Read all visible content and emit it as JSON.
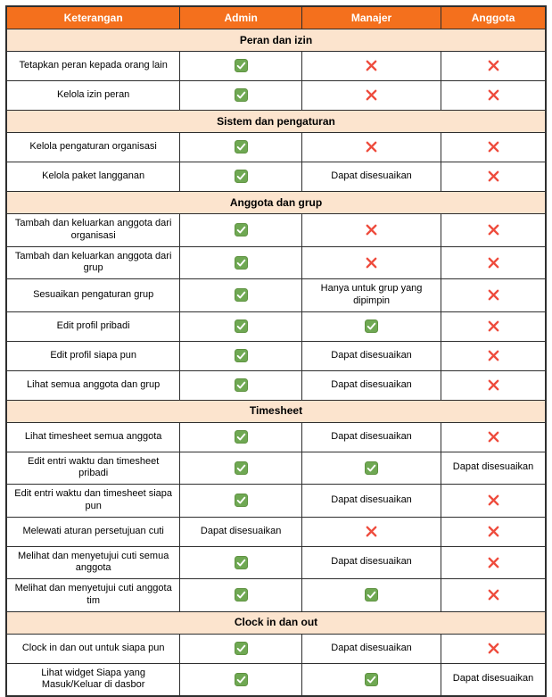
{
  "table": {
    "columns": [
      "Keterangan",
      "Admin",
      "Manajer",
      "Anggota"
    ],
    "sections": [
      {
        "title": "Peran dan izin",
        "rows": [
          {
            "label": "Tetapkan peran kepada orang lain",
            "admin": "check",
            "manajer": "cross",
            "anggota": "cross"
          },
          {
            "label": "Kelola izin peran",
            "admin": "check",
            "manajer": "cross",
            "anggota": "cross"
          }
        ]
      },
      {
        "title": "Sistem dan pengaturan",
        "rows": [
          {
            "label": "Kelola pengaturan organisasi",
            "admin": "check",
            "manajer": "cross",
            "anggota": "cross"
          },
          {
            "label": "Kelola paket langganan",
            "admin": "check",
            "manajer": "Dapat disesuaikan",
            "anggota": "cross"
          }
        ]
      },
      {
        "title": "Anggota dan grup",
        "rows": [
          {
            "label": "Tambah dan keluarkan anggota dari organisasi",
            "admin": "check",
            "manajer": "cross",
            "anggota": "cross"
          },
          {
            "label": "Tambah dan keluarkan anggota dari grup",
            "admin": "check",
            "manajer": "cross",
            "anggota": "cross"
          },
          {
            "label": "Sesuaikan pengaturan grup",
            "admin": "check",
            "manajer": "Hanya untuk grup yang dipimpin",
            "anggota": "cross"
          },
          {
            "label": "Edit profil pribadi",
            "admin": "check",
            "manajer": "check",
            "anggota": "cross"
          },
          {
            "label": "Edit profil siapa pun",
            "admin": "check",
            "manajer": "Dapat disesuaikan",
            "anggota": "cross"
          },
          {
            "label": "Lihat semua anggota dan grup",
            "admin": "check",
            "manajer": "Dapat disesuaikan",
            "anggota": "cross"
          }
        ]
      },
      {
        "title": "Timesheet",
        "rows": [
          {
            "label": "Lihat timesheet semua anggota",
            "admin": "check",
            "manajer": "Dapat disesuaikan",
            "anggota": "cross"
          },
          {
            "label": "Edit entri waktu dan timesheet pribadi",
            "admin": "check",
            "manajer": "check",
            "anggota": "Dapat disesuaikan"
          },
          {
            "label": "Edit entri waktu dan timesheet siapa pun",
            "admin": "check",
            "manajer": "Dapat disesuaikan",
            "anggota": "cross"
          },
          {
            "label": "Melewati aturan persetujuan cuti",
            "admin": "Dapat disesuaikan",
            "manajer": "cross",
            "anggota": "cross"
          },
          {
            "label": "Melihat dan menyetujui cuti semua anggota",
            "admin": "check",
            "manajer": "Dapat disesuaikan",
            "anggota": "cross"
          },
          {
            "label": "Melihat dan menyetujui cuti anggota tim",
            "admin": "check",
            "manajer": "check",
            "anggota": "cross"
          }
        ]
      },
      {
        "title": "Clock in dan out",
        "rows": [
          {
            "label": "Clock in dan out untuk siapa pun",
            "admin": "check",
            "manajer": "Dapat disesuaikan",
            "anggota": "cross"
          },
          {
            "label": "Lihat widget Siapa yang Masuk/Keluar di dasbor",
            "admin": "check",
            "manajer": "check",
            "anggota": "Dapat disesuaikan"
          }
        ]
      }
    ]
  },
  "icons": {
    "check_name": "checkmark-icon",
    "cross_name": "cross-icon"
  },
  "colors": {
    "header_bg": "#F4701D",
    "header_text": "#FFFFFF",
    "section_bg": "#FCE4CE",
    "border": "#2E2E2E",
    "check_green_fill": "#6FA853",
    "check_green_border": "#5E9140",
    "cross_red": "#EE4B3C",
    "body_text": "#000000",
    "row_bg": "#FFFFFF"
  }
}
